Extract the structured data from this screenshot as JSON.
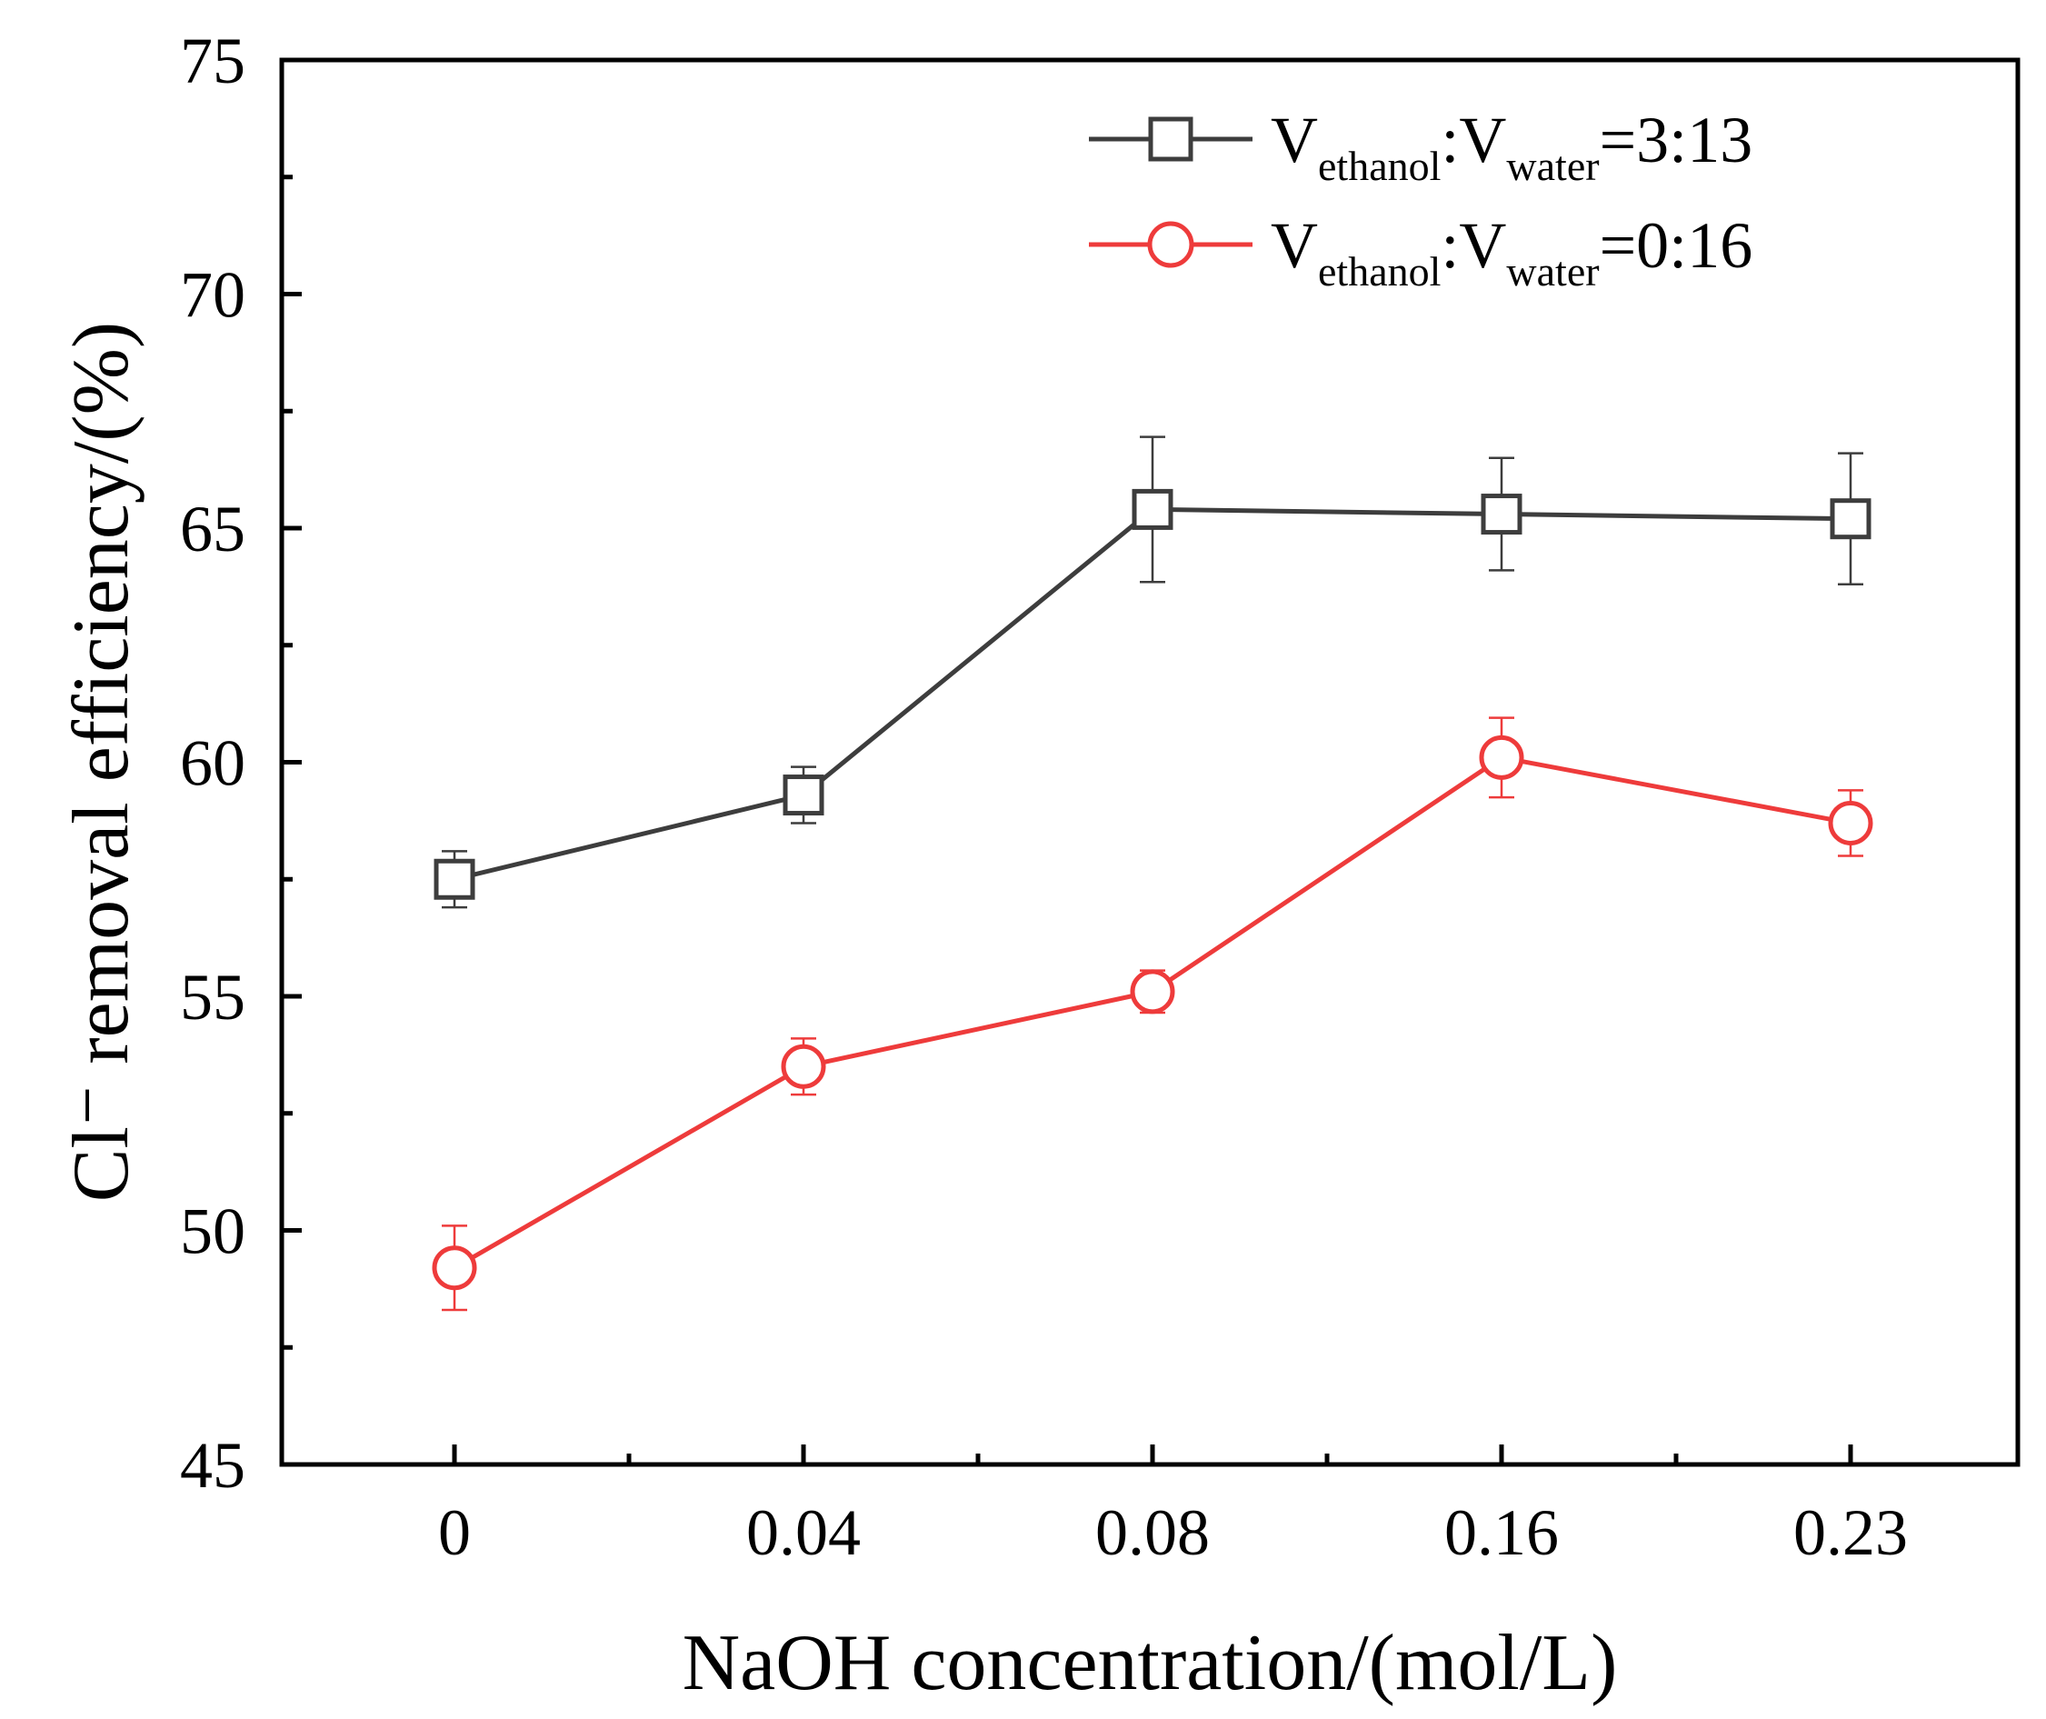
{
  "chart_data": {
    "type": "line",
    "categories": [
      "0",
      "0.04",
      "0.08",
      "0.16",
      "0.23"
    ],
    "xlabel": "NaOH concentration/(mol/L)",
    "ylabel": "Cl⁻ removal efficiency/(%)",
    "ylim": [
      45,
      75
    ],
    "yticks": [
      45,
      50,
      55,
      60,
      65,
      70,
      75
    ],
    "grid": false,
    "legend_position": "top-right",
    "series": [
      {
        "name": "V_ethanol:V_water=3:13",
        "legend": {
          "v1": "V",
          "sub1": "ethanol",
          "sep": ":",
          "v2": "V",
          "sub2": "water",
          "ratio": "=3:13"
        },
        "color": "#3d3d3d",
        "marker": "square",
        "values": [
          57.5,
          59.3,
          65.4,
          65.3,
          65.2
        ],
        "errors": [
          0.6,
          0.6,
          1.55,
          1.2,
          1.4
        ]
      },
      {
        "name": "V_ethanol:V_water=0:16",
        "legend": {
          "v1": "V",
          "sub1": "ethanol",
          "sep": ":",
          "v2": "V",
          "sub2": "water",
          "ratio": "=0:16"
        },
        "color": "#ee3b3b",
        "marker": "circle",
        "values": [
          49.2,
          53.5,
          55.1,
          60.1,
          58.7
        ],
        "errors": [
          0.9,
          0.6,
          0.45,
          0.85,
          0.7
        ]
      }
    ]
  }
}
